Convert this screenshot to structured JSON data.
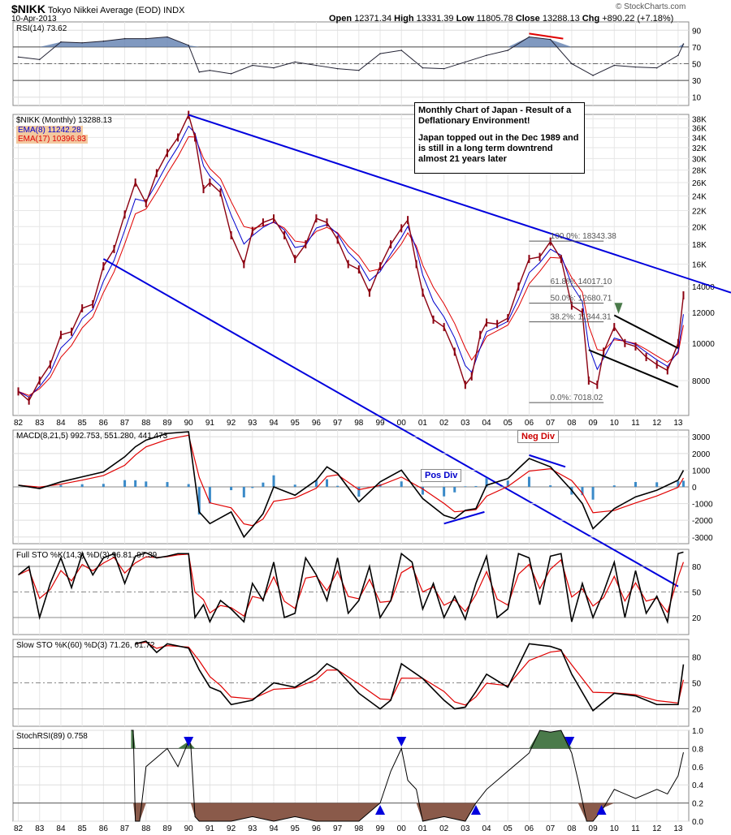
{
  "header": {
    "symbol": "$NIKK",
    "name": "Tokyo Nikkei Average (EOD)",
    "exchange": "INDX",
    "date": "10-Apr-2013",
    "open_label": "Open",
    "open": "12371.34",
    "high_label": "High",
    "high": "13331.39",
    "low_label": "Low",
    "low": "11805.78",
    "close_label": "Close",
    "close": "13288.13",
    "chg_label": "Chg",
    "chg": "+890.22 (+7.18%)",
    "brand": "© StockCharts.com"
  },
  "annotation": {
    "line1": "Monthly Chart of Japan - Result of a Deflationary Environment!",
    "line2": "Japan topped out in the Dec 1989 and is still in a long term downtrend almost 21 years later"
  },
  "tags": {
    "pos_div": "Pos Div",
    "neg_div": "Neg Div"
  },
  "colors": {
    "price": "#8b0010",
    "ema8": "#0000cc",
    "ema17": "#e00000",
    "trend": "#0000dd",
    "hist": "#3a8ac8",
    "green": "#4a7a4a",
    "brown": "#8a5a4a",
    "fill_blue": "#6080b0"
  },
  "chart_data": [
    {
      "type": "line",
      "title": "RSI(14) 73.62",
      "yticks": [
        10,
        30,
        50,
        70,
        90
      ],
      "ylim": [
        0,
        100
      ],
      "x": [
        1982.0,
        1983.0,
        1984.0,
        1985.0,
        1986.0,
        1987.0,
        1988.0,
        1989.0,
        1990.0,
        1990.5,
        1991.0,
        1992.0,
        1993.0,
        1994.0,
        1995.0,
        1996.0,
        1997.0,
        1998.0,
        1999.0,
        2000.0,
        2001.0,
        2002.0,
        2003.0,
        2004.0,
        2005.0,
        2006.0,
        2007.0,
        2008.0,
        2009.0,
        2010.0,
        2011.0,
        2012.0,
        2013.0,
        2013.25
      ],
      "values": [
        58,
        55,
        76,
        75,
        77,
        80,
        80,
        82,
        72,
        40,
        42,
        38,
        48,
        45,
        52,
        48,
        44,
        42,
        62,
        66,
        45,
        44,
        52,
        60,
        66,
        82,
        79,
        50,
        36,
        48,
        46,
        45,
        60,
        73.62
      ]
    },
    {
      "type": "line",
      "title": "$NIKK (Monthly) 13288.13",
      "series": [
        {
          "name": "EMA(8) 11242.28"
        },
        {
          "name": "EMA(17) 10396.83"
        }
      ],
      "yticks": [
        "8000",
        "10000",
        "12000",
        "14000",
        "16K",
        "18K",
        "20K",
        "22K",
        "24K",
        "26K",
        "28K",
        "30K",
        "32K",
        "34K",
        "36K",
        "38K"
      ],
      "xticks": [
        "82",
        "83",
        "84",
        "85",
        "86",
        "87",
        "88",
        "89",
        "90",
        "91",
        "92",
        "93",
        "94",
        "95",
        "96",
        "97",
        "98",
        "99",
        "00",
        "01",
        "02",
        "03",
        "04",
        "05",
        "06",
        "07",
        "08",
        "09",
        "10",
        "11",
        "12",
        "13"
      ],
      "ylim": [
        6500,
        39000
      ],
      "x": [
        1982.0,
        1982.5,
        1983.0,
        1983.5,
        1984.0,
        1984.5,
        1985.0,
        1985.5,
        1986.0,
        1986.5,
        1987.0,
        1987.5,
        1988.0,
        1988.5,
        1989.0,
        1989.5,
        1990.0,
        1990.3,
        1990.7,
        1991.0,
        1991.5,
        1992.0,
        1992.6,
        1993.0,
        1993.5,
        1994.0,
        1994.5,
        1995.0,
        1995.5,
        1996.0,
        1996.5,
        1997.0,
        1997.5,
        1998.0,
        1998.5,
        1999.0,
        1999.5,
        2000.0,
        2000.3,
        2000.7,
        2001.0,
        2001.5,
        2002.0,
        2002.5,
        2003.0,
        2003.3,
        2003.7,
        2004.0,
        2004.5,
        2005.0,
        2005.5,
        2006.0,
        2006.5,
        2007.0,
        2007.5,
        2008.0,
        2008.5,
        2008.8,
        2009.2,
        2009.5,
        2010.0,
        2010.5,
        2011.0,
        2011.5,
        2012.0,
        2012.5,
        2013.0,
        2013.25
      ],
      "values": [
        7500,
        7100,
        8000,
        8800,
        10500,
        10700,
        12300,
        12600,
        15800,
        17500,
        21500,
        26000,
        23000,
        27500,
        31000,
        34000,
        38900,
        34000,
        25000,
        26000,
        24500,
        19000,
        16000,
        19500,
        20500,
        21000,
        19000,
        16500,
        18000,
        21000,
        20500,
        18500,
        16000,
        15500,
        13500,
        15800,
        18000,
        19800,
        20800,
        16000,
        13500,
        11500,
        11000,
        9500,
        7800,
        8200,
        10500,
        11300,
        11200,
        11600,
        14000,
        16500,
        16700,
        18300,
        16500,
        12500,
        12000,
        8000,
        7800,
        9500,
        11000,
        10000,
        9800,
        9200,
        8800,
        8500,
        10000,
        13288
      ]
    },
    {
      "type": "line",
      "title": "MACD(8,21,5) 992.753, 551.280, 441.473",
      "yticks": [
        -3000,
        -2000,
        -1000,
        0,
        1000,
        2000,
        3000
      ],
      "ylim": [
        -3400,
        3400
      ],
      "x": [
        1982.0,
        1983.0,
        1984.0,
        1985.0,
        1986.0,
        1987.0,
        1987.5,
        1988.0,
        1989.0,
        1990.0,
        1990.5,
        1991.0,
        1992.0,
        1992.6,
        1993.0,
        1993.5,
        1994.0,
        1995.0,
        1996.0,
        1996.5,
        1997.0,
        1998.0,
        1999.0,
        2000.0,
        2001.0,
        2002.0,
        2002.5,
        2003.0,
        2003.5,
        2004.0,
        2005.0,
        2006.0,
        2007.0,
        2008.0,
        2008.5,
        2009.0,
        2010.0,
        2011.0,
        2012.0,
        2013.0,
        2013.25
      ],
      "values": [
        100,
        -100,
        300,
        600,
        900,
        1800,
        2400,
        2800,
        3200,
        3300,
        -1500,
        -2200,
        -1500,
        -3000,
        -2400,
        -1600,
        0,
        -500,
        400,
        1200,
        800,
        -900,
        300,
        1000,
        -700,
        -1700,
        -1900,
        -1400,
        -1300,
        100,
        500,
        1700,
        1200,
        -200,
        -1000,
        -2500,
        -1300,
        -600,
        -200,
        400,
        992.753
      ]
    },
    {
      "type": "line",
      "title": "Full STO %K(14,3) %D(3) 96.81, 97.39",
      "yticks": [
        20,
        50,
        80
      ],
      "ylim": [
        0,
        100
      ],
      "x": [
        1982.0,
        1982.5,
        1983.0,
        1983.5,
        1984.0,
        1984.5,
        1985.0,
        1985.5,
        1986.0,
        1986.5,
        1987.0,
        1987.5,
        1988.0,
        1988.5,
        1989.0,
        1989.5,
        1990.0,
        1990.3,
        1990.7,
        1991.0,
        1991.5,
        1992.0,
        1992.6,
        1993.0,
        1993.5,
        1994.0,
        1994.5,
        1995.0,
        1995.5,
        1996.0,
        1996.5,
        1997.0,
        1997.5,
        1998.0,
        1998.5,
        1999.0,
        1999.5,
        2000.0,
        2000.5,
        2001.0,
        2001.5,
        2002.0,
        2002.5,
        2003.0,
        2003.5,
        2004.0,
        2004.5,
        2005.0,
        2005.5,
        2006.0,
        2006.5,
        2007.0,
        2007.5,
        2008.0,
        2008.5,
        2009.0,
        2009.5,
        2010.0,
        2010.5,
        2011.0,
        2011.5,
        2012.0,
        2012.5,
        2013.0,
        2013.25
      ],
      "values": [
        70,
        80,
        20,
        60,
        90,
        55,
        95,
        70,
        90,
        95,
        60,
        92,
        96,
        90,
        92,
        95,
        95,
        20,
        35,
        15,
        40,
        30,
        15,
        60,
        40,
        85,
        20,
        25,
        90,
        70,
        40,
        90,
        25,
        40,
        80,
        20,
        40,
        95,
        85,
        30,
        60,
        20,
        45,
        18,
        60,
        92,
        20,
        30,
        95,
        90,
        35,
        92,
        95,
        15,
        60,
        20,
        50,
        85,
        20,
        75,
        25,
        45,
        15,
        95,
        96.81
      ]
    },
    {
      "type": "line",
      "title": "Slow STO %K(60) %D(3) 71.26, 61.72",
      "yticks": [
        20,
        50,
        80
      ],
      "ylim": [
        0,
        100
      ],
      "x": [
        1987.5,
        1988.0,
        1988.5,
        1989.0,
        1990.0,
        1990.5,
        1991.0,
        1991.5,
        1992.0,
        1993.0,
        1994.0,
        1995.0,
        1996.0,
        1996.5,
        1997.0,
        1998.0,
        1999.0,
        1999.5,
        2000.0,
        2001.0,
        2002.0,
        2002.5,
        2003.0,
        2003.5,
        2004.0,
        2005.0,
        2006.0,
        2007.0,
        2007.5,
        2008.0,
        2009.0,
        2010.0,
        2011.0,
        2012.0,
        2013.0,
        2013.25
      ],
      "values": [
        95,
        98,
        85,
        95,
        90,
        65,
        45,
        40,
        25,
        30,
        50,
        45,
        60,
        72,
        65,
        38,
        20,
        30,
        72,
        55,
        30,
        20,
        22,
        40,
        60,
        45,
        95,
        92,
        88,
        60,
        18,
        38,
        35,
        25,
        25,
        71.26
      ]
    },
    {
      "type": "area",
      "title": "StochRSI(89) 0.758",
      "yticks": [
        0.0,
        0.2,
        0.4,
        0.6,
        0.8,
        1.0
      ],
      "xticks": [
        "82",
        "83",
        "84",
        "85",
        "86",
        "87",
        "88",
        "89",
        "90",
        "91",
        "92",
        "93",
        "94",
        "95",
        "96",
        "97",
        "98",
        "99",
        "00",
        "01",
        "02",
        "03",
        "04",
        "05",
        "06",
        "07",
        "08",
        "09",
        "10",
        "11",
        "12",
        "13"
      ],
      "ylim": [
        0,
        1
      ],
      "x": [
        1987.3,
        1987.4,
        1987.5,
        1987.7,
        1988.0,
        1988.5,
        1989.0,
        1989.5,
        1990.0,
        1990.1,
        1990.3,
        1990.5,
        1991.0,
        1992.0,
        1993.0,
        1994.0,
        1995.0,
        1996.0,
        1997.0,
        1998.0,
        1999.0,
        1999.5,
        2000.0,
        2000.3,
        2000.7,
        2001.0,
        2002.0,
        2003.0,
        2003.5,
        2004.0,
        2005.0,
        2006.0,
        2006.5,
        2007.0,
        2007.5,
        2008.0,
        2008.3,
        2008.7,
        2009.0,
        2009.5,
        2010.0,
        2011.0,
        2012.0,
        2012.5,
        2013.0,
        2013.25
      ],
      "values": [
        1.0,
        1.0,
        0.0,
        0.0,
        0.6,
        0.7,
        0.8,
        0.6,
        0.88,
        0.85,
        0.05,
        0.0,
        0.0,
        0.0,
        0.05,
        0.0,
        0.05,
        0.0,
        0.0,
        0.0,
        0.2,
        0.55,
        0.8,
        0.45,
        0.35,
        0.0,
        0.05,
        0.0,
        0.2,
        0.35,
        0.55,
        0.75,
        1.0,
        0.98,
        1.0,
        0.75,
        0.45,
        0.0,
        0.0,
        0.15,
        0.35,
        0.25,
        0.35,
        0.3,
        0.5,
        0.758
      ]
    }
  ],
  "fib_levels": [
    {
      "label": "100.0%: 18343.38"
    },
    {
      "label": "61.8%: 14017.10"
    },
    {
      "label": "50.0%: 12680.71"
    },
    {
      "label": "38.2%: 11344.31"
    },
    {
      "label": "0.0%: 7018.02"
    }
  ]
}
